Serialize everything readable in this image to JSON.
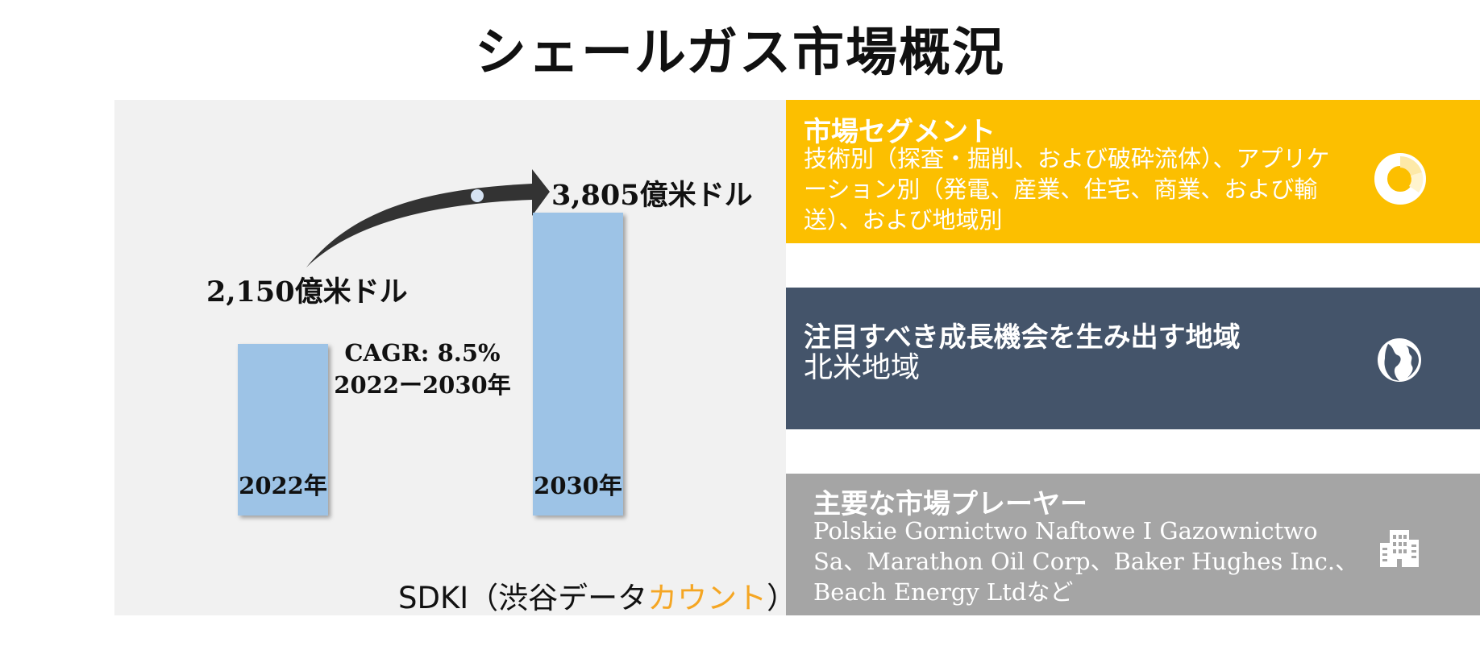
{
  "title": "シェールガス市場概況",
  "chart_data": {
    "type": "bar",
    "categories": [
      "2022年",
      "2030年"
    ],
    "values": [
      2150,
      3805
    ],
    "value_labels": [
      "2,150億米ドル",
      "3,805億米ドル"
    ],
    "annotation": [
      "CAGR: 8.5%",
      "2022ー2030年"
    ],
    "bar_color": "#9dc3e6"
  },
  "source": {
    "prefix": "SDKI（渋谷データ",
    "accent": "カウント",
    "suffix": "）",
    "accent_color": "#f5a623"
  },
  "segments": {
    "title": "市場セグメント",
    "body": "技術別（探査・掘削、および破砕流体）、アプリケーション別（発電、産業、住宅、商業、および輸送）、および地域別",
    "color": "#fcbf00",
    "icon": "donut-chart-icon"
  },
  "region": {
    "title": "注目すべき成長機会を生み出す地域",
    "body": "北米地域",
    "color": "#44546a",
    "icon": "globe-icon"
  },
  "players": {
    "title": "主要な市場プレーヤー",
    "body": "Polskie Gornictwo Naftowe I Gazownictwo Sa、Marathon Oil Corp、Baker Hughes Inc.、Beach Energy Ltdなど",
    "color": "#a5a5a5",
    "icon": "office-building-icon"
  }
}
